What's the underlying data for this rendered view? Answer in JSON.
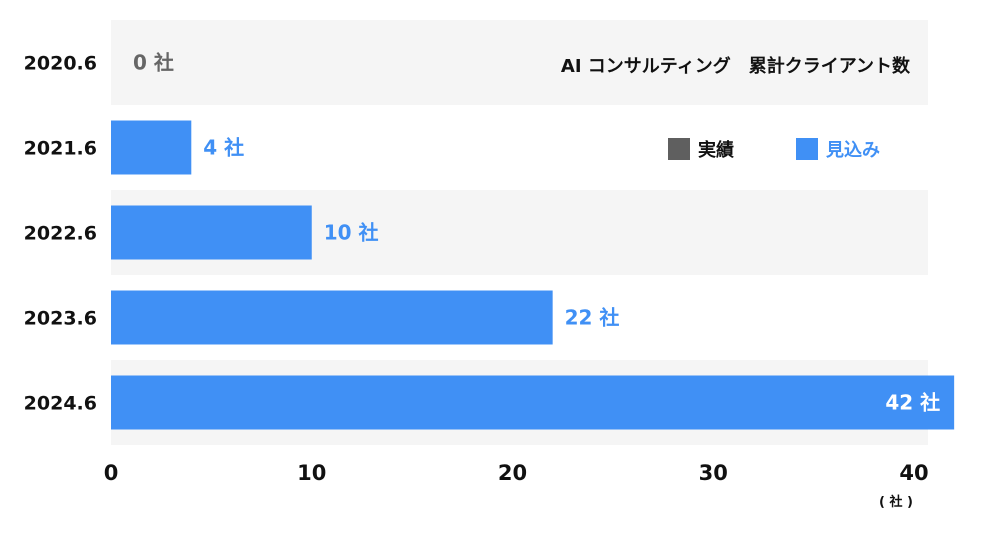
{
  "chart_data": {
    "type": "bar",
    "orientation": "horizontal",
    "title": "AI コンサルティング　累計クライアント数",
    "categories": [
      "2020.6",
      "2021.6",
      "2022.6",
      "2023.6",
      "2024.6"
    ],
    "series": [
      {
        "name": "見込み",
        "values": [
          0,
          4,
          10,
          22,
          42
        ]
      }
    ],
    "data_labels": [
      "0 社",
      "4 社",
      "10 社",
      "22 社",
      "42 社"
    ],
    "xticks": [
      "0",
      "10",
      "20",
      "30",
      "40"
    ],
    "xlim": [
      0,
      40
    ],
    "x_unit": "( 社 )",
    "legend": [
      {
        "label": "実績",
        "color": "#5f5f5f"
      },
      {
        "label": "見込み",
        "color": "#4090f5"
      }
    ],
    "legend_position": "top-right",
    "colors": {
      "bar": "#4090f5",
      "zero_label": "#666666",
      "inside_label": "#ffffff",
      "band": "#f5f5f5"
    }
  }
}
